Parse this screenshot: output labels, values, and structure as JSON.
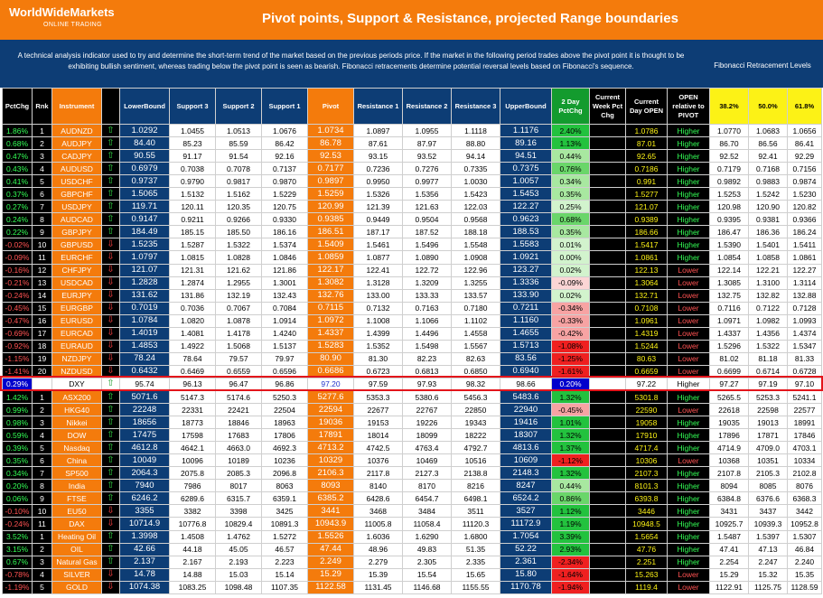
{
  "header": {
    "brand": "WorldWideMarkets",
    "brand_sub": "ONLINE TRADING",
    "title": "Pivot points, Support & Resistance, projected Range boundaries"
  },
  "description": "A technical analysis indicator used to try and determine the short-term trend of the market based on the previous periods price. If the market in the following period trades above the pivot point it is thought to be exhibiting bullish sentiment, whereas trading below the pivot point is seen as bearish. Fibonacci retracements determine potential reversal levels based on Fibonacci's sequence.",
  "fib_header": "Fibonacci Retracement Levels",
  "columns": {
    "pctchg": "PctChg",
    "rnk": "Rnk",
    "instrument": "Instrument",
    "lower": "LowerBound",
    "s3": "Support 3",
    "s2": "Support 2",
    "s1": "Support 1",
    "pivot": "Pivot",
    "r1": "Resistance 1",
    "r2": "Resistance 2",
    "r3": "Resistance 3",
    "upper": "UpperBound",
    "twoday": "2 Day PctChg",
    "week": "Current Week Pct Chg",
    "open": "Current Day OPEN",
    "rel": "OPEN relative to PIVOT",
    "f1": "38.2%",
    "f2": "50.0%",
    "f3": "61.8%"
  },
  "colors": {
    "orange": "#f47b0c",
    "navy": "#0d3d75",
    "green": "#33ff55",
    "red": "#ff5252",
    "yellow": "#fcf216"
  },
  "icons": {
    "up": "up-arrow-icon",
    "down": "down-arrow-icon"
  },
  "rows": [
    {
      "pct": "1.86%",
      "rnk": "1",
      "ins": "AUDNZD",
      "dir": "up",
      "lb": "1.0292",
      "s3": "1.0455",
      "s2": "1.0513",
      "s1": "1.0676",
      "pv": "1.0734",
      "r1": "1.0897",
      "r2": "1.0955",
      "r3": "1.1118",
      "ub": "1.1176",
      "two": "2.40%",
      "wk": "",
      "op": "1.0786",
      "rel": "Higher",
      "f1": "1.0770",
      "f2": "1.0683",
      "f3": "1.0656"
    },
    {
      "pct": "0.68%",
      "rnk": "2",
      "ins": "AUDJPY",
      "dir": "up",
      "lb": "84.40",
      "s3": "85.23",
      "s2": "85.59",
      "s1": "86.42",
      "pv": "86.78",
      "r1": "87.61",
      "r2": "87.97",
      "r3": "88.80",
      "ub": "89.16",
      "two": "1.13%",
      "wk": "",
      "op": "87.01",
      "rel": "Higher",
      "f1": "86.70",
      "f2": "86.56",
      "f3": "86.41"
    },
    {
      "pct": "0.47%",
      "rnk": "3",
      "ins": "CADJPY",
      "dir": "up",
      "lb": "90.55",
      "s3": "91.17",
      "s2": "91.54",
      "s1": "92.16",
      "pv": "92.53",
      "r1": "93.15",
      "r2": "93.52",
      "r3": "94.14",
      "ub": "94.51",
      "two": "0.44%",
      "wk": "",
      "op": "92.65",
      "rel": "Higher",
      "f1": "92.52",
      "f2": "92.41",
      "f3": "92.29"
    },
    {
      "pct": "0.43%",
      "rnk": "4",
      "ins": "AUDUSD",
      "dir": "up",
      "lb": "0.6979",
      "s3": "0.7038",
      "s2": "0.7078",
      "s1": "0.7137",
      "pv": "0.7177",
      "r1": "0.7236",
      "r2": "0.7276",
      "r3": "0.7335",
      "ub": "0.7375",
      "two": "0.76%",
      "wk": "",
      "op": "0.7186",
      "rel": "Higher",
      "f1": "0.7179",
      "f2": "0.7168",
      "f3": "0.7156"
    },
    {
      "pct": "0.41%",
      "rnk": "5",
      "ins": "USDCHF",
      "dir": "up",
      "lb": "0.9737",
      "s3": "0.9790",
      "s2": "0.9817",
      "s1": "0.9870",
      "pv": "0.9897",
      "r1": "0.9950",
      "r2": "0.9977",
      "r3": "1.0030",
      "ub": "1.0057",
      "two": "0.34%",
      "wk": "",
      "op": "0.991",
      "rel": "Higher",
      "f1": "0.9892",
      "f2": "0.9883",
      "f3": "0.9874"
    },
    {
      "pct": "0.37%",
      "rnk": "6",
      "ins": "GBPCHF",
      "dir": "up",
      "lb": "1.5065",
      "s3": "1.5132",
      "s2": "1.5162",
      "s1": "1.5229",
      "pv": "1.5259",
      "r1": "1.5326",
      "r2": "1.5356",
      "r3": "1.5423",
      "ub": "1.5453",
      "two": "0.35%",
      "wk": "",
      "op": "1.5277",
      "rel": "Higher",
      "f1": "1.5253",
      "f2": "1.5242",
      "f3": "1.5230"
    },
    {
      "pct": "0.27%",
      "rnk": "7",
      "ins": "USDJPY",
      "dir": "up",
      "lb": "119.71",
      "s3": "120.11",
      "s2": "120.35",
      "s1": "120.75",
      "pv": "120.99",
      "r1": "121.39",
      "r2": "121.63",
      "r3": "122.03",
      "ub": "122.27",
      "two": "0.25%",
      "wk": "",
      "op": "121.07",
      "rel": "Higher",
      "f1": "120.98",
      "f2": "120.90",
      "f3": "120.82"
    },
    {
      "pct": "0.24%",
      "rnk": "8",
      "ins": "AUDCAD",
      "dir": "up",
      "lb": "0.9147",
      "s3": "0.9211",
      "s2": "0.9266",
      "s1": "0.9330",
      "pv": "0.9385",
      "r1": "0.9449",
      "r2": "0.9504",
      "r3": "0.9568",
      "ub": "0.9623",
      "two": "0.68%",
      "wk": "",
      "op": "0.9389",
      "rel": "Higher",
      "f1": "0.9395",
      "f2": "0.9381",
      "f3": "0.9366"
    },
    {
      "pct": "0.22%",
      "rnk": "9",
      "ins": "GBPJPY",
      "dir": "up",
      "lb": "184.49",
      "s3": "185.15",
      "s2": "185.50",
      "s1": "186.16",
      "pv": "186.51",
      "r1": "187.17",
      "r2": "187.52",
      "r3": "188.18",
      "ub": "188.53",
      "two": "0.35%",
      "wk": "",
      "op": "186.66",
      "rel": "Higher",
      "f1": "186.47",
      "f2": "186.36",
      "f3": "186.24"
    },
    {
      "pct": "-0.02%",
      "rnk": "10",
      "ins": "GBPUSD",
      "dir": "down",
      "lb": "1.5235",
      "s3": "1.5287",
      "s2": "1.5322",
      "s1": "1.5374",
      "pv": "1.5409",
      "r1": "1.5461",
      "r2": "1.5496",
      "r3": "1.5548",
      "ub": "1.5583",
      "two": "0.01%",
      "wk": "",
      "op": "1.5417",
      "rel": "Higher",
      "f1": "1.5390",
      "f2": "1.5401",
      "f3": "1.5411"
    },
    {
      "pct": "-0.09%",
      "rnk": "11",
      "ins": "EURCHF",
      "dir": "down",
      "lb": "1.0797",
      "s3": "1.0815",
      "s2": "1.0828",
      "s1": "1.0846",
      "pv": "1.0859",
      "r1": "1.0877",
      "r2": "1.0890",
      "r3": "1.0908",
      "ub": "1.0921",
      "two": "0.00%",
      "wk": "",
      "op": "1.0861",
      "rel": "Higher",
      "f1": "1.0854",
      "f2": "1.0858",
      "f3": "1.0861"
    },
    {
      "pct": "-0.16%",
      "rnk": "12",
      "ins": "CHFJPY",
      "dir": "down",
      "lb": "121.07",
      "s3": "121.31",
      "s2": "121.62",
      "s1": "121.86",
      "pv": "122.17",
      "r1": "122.41",
      "r2": "122.72",
      "r3": "122.96",
      "ub": "123.27",
      "two": "0.02%",
      "wk": "",
      "op": "122.13",
      "rel": "Lower",
      "f1": "122.14",
      "f2": "122.21",
      "f3": "122.27"
    },
    {
      "pct": "-0.21%",
      "rnk": "13",
      "ins": "USDCAD",
      "dir": "down",
      "lb": "1.2828",
      "s3": "1.2874",
      "s2": "1.2955",
      "s1": "1.3001",
      "pv": "1.3082",
      "r1": "1.3128",
      "r2": "1.3209",
      "r3": "1.3255",
      "ub": "1.3336",
      "two": "-0.09%",
      "wk": "",
      "op": "1.3064",
      "rel": "Lower",
      "f1": "1.3085",
      "f2": "1.3100",
      "f3": "1.3114"
    },
    {
      "pct": "-0.24%",
      "rnk": "14",
      "ins": "EURJPY",
      "dir": "down",
      "lb": "131.62",
      "s3": "131.86",
      "s2": "132.19",
      "s1": "132.43",
      "pv": "132.76",
      "r1": "133.00",
      "r2": "133.33",
      "r3": "133.57",
      "ub": "133.90",
      "two": "0.02%",
      "wk": "",
      "op": "132.71",
      "rel": "Lower",
      "f1": "132.75",
      "f2": "132.82",
      "f3": "132.88"
    },
    {
      "pct": "-0.45%",
      "rnk": "15",
      "ins": "EURGBP",
      "dir": "down",
      "lb": "0.7019",
      "s3": "0.7036",
      "s2": "0.7067",
      "s1": "0.7084",
      "pv": "0.7115",
      "r1": "0.7132",
      "r2": "0.7163",
      "r3": "0.7180",
      "ub": "0.7211",
      "two": "-0.34%",
      "wk": "",
      "op": "0.7108",
      "rel": "Lower",
      "f1": "0.7116",
      "f2": "0.7122",
      "f3": "0.7128"
    },
    {
      "pct": "-0.47%",
      "rnk": "16",
      "ins": "EURUSD",
      "dir": "down",
      "lb": "1.0784",
      "s3": "1.0820",
      "s2": "1.0878",
      "s1": "1.0914",
      "pv": "1.0972",
      "r1": "1.1008",
      "r2": "1.1066",
      "r3": "1.1102",
      "ub": "1.1160",
      "two": "-0.33%",
      "wk": "",
      "op": "1.0961",
      "rel": "Lower",
      "f1": "1.0971",
      "f2": "1.0982",
      "f3": "1.0993"
    },
    {
      "pct": "-0.69%",
      "rnk": "17",
      "ins": "EURCAD",
      "dir": "down",
      "lb": "1.4019",
      "s3": "1.4081",
      "s2": "1.4178",
      "s1": "1.4240",
      "pv": "1.4337",
      "r1": "1.4399",
      "r2": "1.4496",
      "r3": "1.4558",
      "ub": "1.4655",
      "two": "-0.42%",
      "wk": "",
      "op": "1.4319",
      "rel": "Lower",
      "f1": "1.4337",
      "f2": "1.4356",
      "f3": "1.4374"
    },
    {
      "pct": "-0.92%",
      "rnk": "18",
      "ins": "EURAUD",
      "dir": "down",
      "lb": "1.4853",
      "s3": "1.4922",
      "s2": "1.5068",
      "s1": "1.5137",
      "pv": "1.5283",
      "r1": "1.5352",
      "r2": "1.5498",
      "r3": "1.5567",
      "ub": "1.5713",
      "two": "-1.08%",
      "wk": "",
      "op": "1.5244",
      "rel": "Lower",
      "f1": "1.5296",
      "f2": "1.5322",
      "f3": "1.5347"
    },
    {
      "pct": "-1.15%",
      "rnk": "19",
      "ins": "NZDJPY",
      "dir": "down",
      "lb": "78.24",
      "s3": "78.64",
      "s2": "79.57",
      "s1": "79.97",
      "pv": "80.90",
      "r1": "81.30",
      "r2": "82.23",
      "r3": "82.63",
      "ub": "83.56",
      "two": "-1.25%",
      "wk": "",
      "op": "80.63",
      "rel": "Lower",
      "f1": "81.02",
      "f2": "81.18",
      "f3": "81.33"
    },
    {
      "pct": "-1.41%",
      "rnk": "20",
      "ins": "NZDUSD",
      "dir": "down",
      "lb": "0.6432",
      "s3": "0.6469",
      "s2": "0.6559",
      "s1": "0.6596",
      "pv": "0.6686",
      "r1": "0.6723",
      "r2": "0.6813",
      "r3": "0.6850",
      "ub": "0.6940",
      "two": "-1.61%",
      "wk": "",
      "op": "0.6659",
      "rel": "Lower",
      "f1": "0.6699",
      "f2": "0.6714",
      "f3": "0.6728"
    },
    {
      "pct": "0.29%",
      "rnk": "",
      "ins": "DXY",
      "dir": "up",
      "lb": "95.74",
      "s3": "96.13",
      "s2": "96.47",
      "s1": "96.86",
      "pv": "97.20",
      "r1": "97.59",
      "r2": "97.93",
      "r3": "98.32",
      "ub": "98.66",
      "two": "0.20%",
      "wk": "",
      "op": "97.22",
      "rel": "Higher",
      "f1": "97.27",
      "f2": "97.19",
      "f3": "97.10"
    },
    {
      "pct": "1.42%",
      "rnk": "1",
      "ins": "ASX200",
      "dir": "up",
      "lb": "5071.6",
      "s3": "5147.3",
      "s2": "5174.6",
      "s1": "5250.3",
      "pv": "5277.6",
      "r1": "5353.3",
      "r2": "5380.6",
      "r3": "5456.3",
      "ub": "5483.6",
      "two": "1.32%",
      "wk": "",
      "op": "5301.8",
      "rel": "Higher",
      "f1": "5265.5",
      "f2": "5253.3",
      "f3": "5241.1"
    },
    {
      "pct": "0.99%",
      "rnk": "2",
      "ins": "HKG40",
      "dir": "up",
      "lb": "22248",
      "s3": "22331",
      "s2": "22421",
      "s1": "22504",
      "pv": "22594",
      "r1": "22677",
      "r2": "22767",
      "r3": "22850",
      "ub": "22940",
      "two": "-0.45%",
      "wk": "",
      "op": "22590",
      "rel": "Lower",
      "f1": "22618",
      "f2": "22598",
      "f3": "22577"
    },
    {
      "pct": "0.98%",
      "rnk": "3",
      "ins": "Nikkei",
      "dir": "up",
      "lb": "18656",
      "s3": "18773",
      "s2": "18846",
      "s1": "18963",
      "pv": "19036",
      "r1": "19153",
      "r2": "19226",
      "r3": "19343",
      "ub": "19416",
      "two": "1.01%",
      "wk": "",
      "op": "19058",
      "rel": "Higher",
      "f1": "19035",
      "f2": "19013",
      "f3": "18991"
    },
    {
      "pct": "0.59%",
      "rnk": "4",
      "ins": "DOW",
      "dir": "up",
      "lb": "17475",
      "s3": "17598",
      "s2": "17683",
      "s1": "17806",
      "pv": "17891",
      "r1": "18014",
      "r2": "18099",
      "r3": "18222",
      "ub": "18307",
      "two": "1.32%",
      "wk": "",
      "op": "17910",
      "rel": "Higher",
      "f1": "17896",
      "f2": "17871",
      "f3": "17846"
    },
    {
      "pct": "0.39%",
      "rnk": "5",
      "ins": "Nasdaq",
      "dir": "up",
      "lb": "4612.8",
      "s3": "4642.1",
      "s2": "4663.0",
      "s1": "4692.3",
      "pv": "4713.2",
      "r1": "4742.5",
      "r2": "4763.4",
      "r3": "4792.7",
      "ub": "4813.6",
      "two": "1.37%",
      "wk": "",
      "op": "4717.4",
      "rel": "Higher",
      "f1": "4714.9",
      "f2": "4709.0",
      "f3": "4703.1"
    },
    {
      "pct": "0.35%",
      "rnk": "6",
      "ins": "China",
      "dir": "up",
      "lb": "10049",
      "s3": "10096",
      "s2": "10189",
      "s1": "10236",
      "pv": "10329",
      "r1": "10376",
      "r2": "10469",
      "r3": "10516",
      "ub": "10609",
      "two": "-1.12%",
      "wk": "",
      "op": "10306",
      "rel": "Lower",
      "f1": "10368",
      "f2": "10351",
      "f3": "10334"
    },
    {
      "pct": "0.34%",
      "rnk": "7",
      "ins": "SP500",
      "dir": "up",
      "lb": "2064.3",
      "s3": "2075.8",
      "s2": "2085.3",
      "s1": "2096.8",
      "pv": "2106.3",
      "r1": "2117.8",
      "r2": "2127.3",
      "r3": "2138.8",
      "ub": "2148.3",
      "two": "1.32%",
      "wk": "",
      "op": "2107.3",
      "rel": "Higher",
      "f1": "2107.8",
      "f2": "2105.3",
      "f3": "2102.8"
    },
    {
      "pct": "0.20%",
      "rnk": "8",
      "ins": "India",
      "dir": "up",
      "lb": "7940",
      "s3": "7986",
      "s2": "8017",
      "s1": "8063",
      "pv": "8093",
      "r1": "8140",
      "r2": "8170",
      "r3": "8216",
      "ub": "8247",
      "two": "0.44%",
      "wk": "",
      "op": "8101.3",
      "rel": "Higher",
      "f1": "8094",
      "f2": "8085",
      "f3": "8076"
    },
    {
      "pct": "0.06%",
      "rnk": "9",
      "ins": "FTSE",
      "dir": "up",
      "lb": "6246.2",
      "s3": "6289.6",
      "s2": "6315.7",
      "s1": "6359.1",
      "pv": "6385.2",
      "r1": "6428.6",
      "r2": "6454.7",
      "r3": "6498.1",
      "ub": "6524.2",
      "two": "0.86%",
      "wk": "",
      "op": "6393.8",
      "rel": "Higher",
      "f1": "6384.8",
      "f2": "6376.6",
      "f3": "6368.3"
    },
    {
      "pct": "-0.10%",
      "rnk": "10",
      "ins": "EU50",
      "dir": "down",
      "lb": "3355",
      "s3": "3382",
      "s2": "3398",
      "s1": "3425",
      "pv": "3441",
      "r1": "3468",
      "r2": "3484",
      "r3": "3511",
      "ub": "3527",
      "two": "1.12%",
      "wk": "",
      "op": "3446",
      "rel": "Higher",
      "f1": "3431",
      "f2": "3437",
      "f3": "3442"
    },
    {
      "pct": "-0.24%",
      "rnk": "11",
      "ins": "DAX",
      "dir": "down",
      "lb": "10714.9",
      "s3": "10776.8",
      "s2": "10829.4",
      "s1": "10891.3",
      "pv": "10943.9",
      "r1": "11005.8",
      "r2": "11058.4",
      "r3": "11120.3",
      "ub": "11172.9",
      "two": "1.19%",
      "wk": "",
      "op": "10948.5",
      "rel": "Higher",
      "f1": "10925.7",
      "f2": "10939.3",
      "f3": "10952.8"
    },
    {
      "pct": "3.52%",
      "rnk": "1",
      "ins": "Heating Oil",
      "dir": "up",
      "lb": "1.3998",
      "s3": "1.4508",
      "s2": "1.4762",
      "s1": "1.5272",
      "pv": "1.5526",
      "r1": "1.6036",
      "r2": "1.6290",
      "r3": "1.6800",
      "ub": "1.7054",
      "two": "3.39%",
      "wk": "",
      "op": "1.5654",
      "rel": "Higher",
      "f1": "1.5487",
      "f2": "1.5397",
      "f3": "1.5307"
    },
    {
      "pct": "3.15%",
      "rnk": "2",
      "ins": "OIL",
      "dir": "up",
      "lb": "42.66",
      "s3": "44.18",
      "s2": "45.05",
      "s1": "46.57",
      "pv": "47.44",
      "r1": "48.96",
      "r2": "49.83",
      "r3": "51.35",
      "ub": "52.22",
      "two": "2.93%",
      "wk": "",
      "op": "47.76",
      "rel": "Higher",
      "f1": "47.41",
      "f2": "47.13",
      "f3": "46.84"
    },
    {
      "pct": "0.67%",
      "rnk": "3",
      "ins": "Natural Gas",
      "dir": "up",
      "lb": "2.137",
      "s3": "2.167",
      "s2": "2.193",
      "s1": "2.223",
      "pv": "2.249",
      "r1": "2.279",
      "r2": "2.305",
      "r3": "2.335",
      "ub": "2.361",
      "two": "-2.34%",
      "wk": "",
      "op": "2.251",
      "rel": "Higher",
      "f1": "2.254",
      "f2": "2.247",
      "f3": "2.240"
    },
    {
      "pct": "-0.78%",
      "rnk": "4",
      "ins": "SILVER",
      "dir": "down",
      "lb": "14.78",
      "s3": "14.88",
      "s2": "15.03",
      "s1": "15.14",
      "pv": "15.29",
      "r1": "15.39",
      "r2": "15.54",
      "r3": "15.65",
      "ub": "15.80",
      "two": "-1.64%",
      "wk": "",
      "op": "15.263",
      "rel": "Lower",
      "f1": "15.29",
      "f2": "15.32",
      "f3": "15.35"
    },
    {
      "pct": "-1.19%",
      "rnk": "5",
      "ins": "GOLD",
      "dir": "down",
      "lb": "1074.38",
      "s3": "1083.25",
      "s2": "1098.48",
      "s1": "1107.35",
      "pv": "1122.58",
      "r1": "1131.45",
      "r2": "1146.68",
      "r3": "1155.55",
      "ub": "1170.78",
      "two": "-1.94%",
      "wk": "",
      "op": "1119.4",
      "rel": "Lower",
      "f1": "1122.91",
      "f2": "1125.75",
      "f3": "1128.59"
    }
  ]
}
